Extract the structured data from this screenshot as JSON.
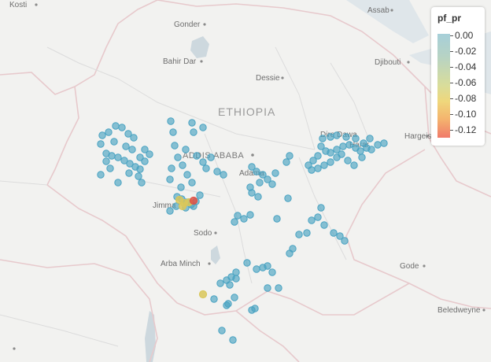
{
  "map": {
    "country_label": "ETHIOPIA",
    "capital_label": "ADDIS ABABA",
    "cities": [
      {
        "name": "Kosti"
      },
      {
        "name": "Gonder"
      },
      {
        "name": "Assab"
      },
      {
        "name": "Bahir Dar"
      },
      {
        "name": "Djibouti"
      },
      {
        "name": "Dessie"
      },
      {
        "name": "Dire Dawa"
      },
      {
        "name": "Harar"
      },
      {
        "name": "Hargeisa"
      },
      {
        "name": "Adama"
      },
      {
        "name": "Jimma"
      },
      {
        "name": "Sodo"
      },
      {
        "name": "Arba Minch"
      },
      {
        "name": "Gode"
      },
      {
        "name": "Beledweyne"
      }
    ]
  },
  "legend": {
    "title": "pf_pr",
    "labels": [
      "0.00",
      "-0.02",
      "-0.04",
      "-0.06",
      "-0.08",
      "-0.10",
      "-0.12"
    ]
  },
  "colors": {
    "low": "#4aa3c2",
    "mid": "#d9c75a",
    "high": "#e05045"
  }
}
